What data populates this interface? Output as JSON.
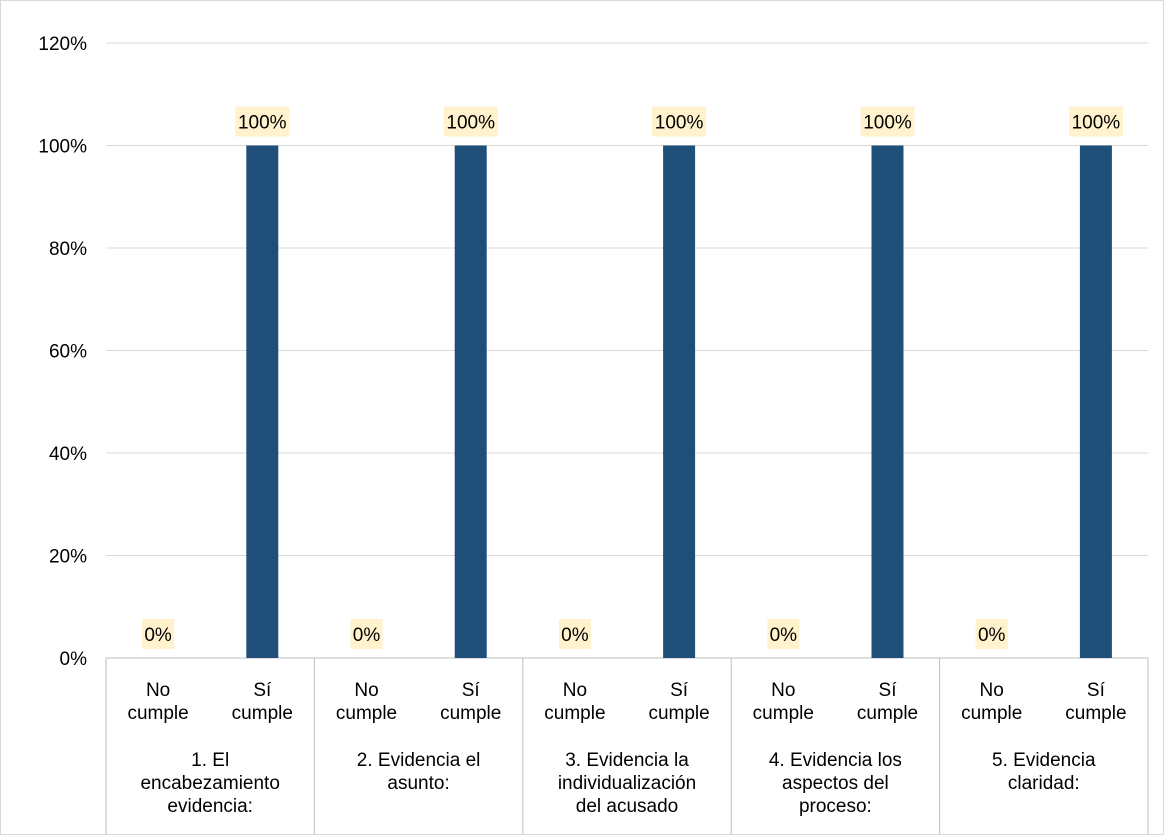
{
  "chart_data": {
    "type": "bar",
    "title": "",
    "xlabel": "",
    "ylabel": "",
    "ylim": [
      0,
      1.2
    ],
    "yticks": [
      0,
      0.2,
      0.4,
      0.6,
      0.8,
      1.0,
      1.2
    ],
    "ytick_labels": [
      "0%",
      "20%",
      "40%",
      "60%",
      "80%",
      "100%",
      "120%"
    ],
    "grid": true,
    "legend": "none",
    "groups": [
      {
        "label_lines": [
          "1. El",
          "encabezamiento",
          "evidencia:"
        ]
      },
      {
        "label_lines": [
          "2. Evidencia el",
          "asunto:"
        ]
      },
      {
        "label_lines": [
          "3. Evidencia la",
          "individualización",
          "del acusado"
        ]
      },
      {
        "label_lines": [
          "4. Evidencia los",
          "aspectos del",
          "proceso:"
        ]
      },
      {
        "label_lines": [
          "5. Evidencia",
          "claridad:"
        ]
      }
    ],
    "categories": [
      {
        "label_lines": [
          "No",
          "cumple"
        ]
      },
      {
        "label_lines": [
          "Sí",
          "cumple"
        ]
      }
    ],
    "values": [
      [
        0,
        1
      ],
      [
        0,
        1
      ],
      [
        0,
        1
      ],
      [
        0,
        1
      ],
      [
        0,
        1
      ]
    ],
    "data_labels": [
      [
        "0%",
        "100%"
      ],
      [
        "0%",
        "100%"
      ],
      [
        "0%",
        "100%"
      ],
      [
        "0%",
        "100%"
      ],
      [
        "0%",
        "100%"
      ]
    ],
    "colors": {
      "bar": "#1f4e79",
      "label_bg": "#fff2cc",
      "grid": "#d9d9d9",
      "axis": "#bfbfbf"
    }
  }
}
